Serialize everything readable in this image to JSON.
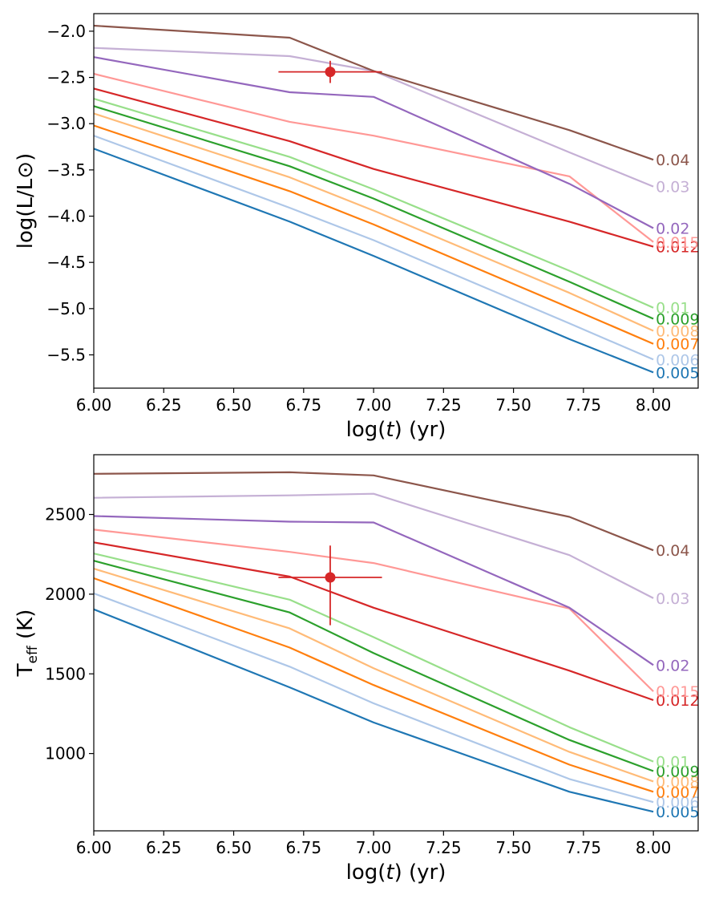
{
  "chart_data": [
    {
      "type": "line",
      "panel": "top",
      "xlabel": "log(t) (yr)",
      "ylabel": "log(L/L⊙)",
      "xlim": [
        6.0,
        8.16
      ],
      "ylim": [
        -5.86,
        -1.81
      ],
      "xticks": [
        6.0,
        6.25,
        6.5,
        6.75,
        7.0,
        7.25,
        7.5,
        7.75,
        8.0
      ],
      "xtick_labels": [
        "6.00",
        "6.25",
        "6.50",
        "6.75",
        "7.00",
        "7.25",
        "7.50",
        "7.75",
        "8.00"
      ],
      "yticks": [
        -2.0,
        -2.5,
        -3.0,
        -3.5,
        -4.0,
        -4.5,
        -5.0,
        -5.5
      ],
      "ytick_labels": [
        "−2.0",
        "−2.5",
        "−3.0",
        "−3.5",
        "−4.0",
        "−4.5",
        "−5.0",
        "−5.5"
      ],
      "x": [
        6.0,
        6.7,
        7.0,
        7.7,
        8.0
      ],
      "series": [
        {
          "name": "0.005",
          "color": "#1f77b4",
          "values": [
            -3.27,
            -4.06,
            -4.43,
            -5.33,
            -5.69
          ]
        },
        {
          "name": "0.006",
          "color": "#aec7e8",
          "values": [
            -3.13,
            -3.91,
            -4.26,
            -5.16,
            -5.55
          ]
        },
        {
          "name": "0.007",
          "color": "#ff7f0e",
          "values": [
            -3.02,
            -3.73,
            -4.09,
            -4.99,
            -5.38
          ]
        },
        {
          "name": "0.008",
          "color": "#ffbb78",
          "values": [
            -2.89,
            -3.58,
            -3.94,
            -4.83,
            -5.24
          ]
        },
        {
          "name": "0.009",
          "color": "#2ca02c",
          "values": [
            -2.81,
            -3.46,
            -3.81,
            -4.71,
            -5.11
          ]
        },
        {
          "name": "0.01",
          "color": "#98df8a",
          "values": [
            -2.73,
            -3.36,
            -3.71,
            -4.59,
            -4.99
          ]
        },
        {
          "name": "0.012",
          "color": "#d62728",
          "values": [
            -2.62,
            -3.19,
            -3.49,
            -4.06,
            -4.33
          ]
        },
        {
          "name": "0.015",
          "color": "#ff9896",
          "values": [
            -2.46,
            -2.98,
            -3.13,
            -3.57,
            -4.28
          ]
        },
        {
          "name": "0.02",
          "color": "#9467bd",
          "values": [
            -2.28,
            -2.66,
            -2.71,
            -3.65,
            -4.13
          ]
        },
        {
          "name": "0.03",
          "color": "#c5b0d5",
          "values": [
            -2.18,
            -2.27,
            -2.43,
            -3.31,
            -3.68
          ]
        },
        {
          "name": "0.04",
          "color": "#8c564b",
          "values": [
            -1.94,
            -2.07,
            -2.43,
            -3.07,
            -3.39
          ]
        }
      ],
      "point": {
        "x": 6.845,
        "y": -2.44,
        "xerr": [
          0.185,
          0.185
        ],
        "yerr": [
          0.12,
          0.12
        ],
        "color": "#d62728"
      }
    },
    {
      "type": "line",
      "panel": "bottom",
      "xlabel": "log(t) (yr)",
      "ylabel": "T_eff (K)",
      "xlim": [
        6.0,
        8.16
      ],
      "ylim": [
        515,
        2875
      ],
      "xticks": [
        6.0,
        6.25,
        6.5,
        6.75,
        7.0,
        7.25,
        7.5,
        7.75,
        8.0
      ],
      "xtick_labels": [
        "6.00",
        "6.25",
        "6.50",
        "6.75",
        "7.00",
        "7.25",
        "7.50",
        "7.75",
        "8.00"
      ],
      "yticks": [
        1000,
        1500,
        2000,
        2500
      ],
      "ytick_labels": [
        "1000",
        "1500",
        "2000",
        "2500"
      ],
      "x": [
        6.0,
        6.7,
        7.0,
        7.7,
        8.0
      ],
      "series": [
        {
          "name": "0.005",
          "color": "#1f77b4",
          "values": [
            1905,
            1415,
            1195,
            760,
            635
          ]
        },
        {
          "name": "0.006",
          "color": "#aec7e8",
          "values": [
            2005,
            1545,
            1315,
            840,
            695
          ]
        },
        {
          "name": "0.007",
          "color": "#ff7f0e",
          "values": [
            2100,
            1665,
            1430,
            930,
            760
          ]
        },
        {
          "name": "0.008",
          "color": "#ffbb78",
          "values": [
            2160,
            1785,
            1535,
            1010,
            825
          ]
        },
        {
          "name": "0.009",
          "color": "#2ca02c",
          "values": [
            2210,
            1885,
            1630,
            1085,
            890
          ]
        },
        {
          "name": "0.01",
          "color": "#98df8a",
          "values": [
            2255,
            1965,
            1730,
            1165,
            950
          ]
        },
        {
          "name": "0.012",
          "color": "#d62728",
          "values": [
            2325,
            2110,
            1915,
            1520,
            1335
          ]
        },
        {
          "name": "0.015",
          "color": "#ff9896",
          "values": [
            2405,
            2265,
            2195,
            1910,
            1390
          ]
        },
        {
          "name": "0.02",
          "color": "#9467bd",
          "values": [
            2490,
            2455,
            2450,
            1915,
            1555
          ]
        },
        {
          "name": "0.03",
          "color": "#c5b0d5",
          "values": [
            2605,
            2620,
            2630,
            2245,
            1975
          ]
        },
        {
          "name": "0.04",
          "color": "#8c564b",
          "values": [
            2755,
            2765,
            2745,
            2485,
            2275
          ]
        }
      ],
      "point": {
        "x": 6.845,
        "y": 2105,
        "xerr": [
          0.185,
          0.185
        ],
        "yerr": [
          300,
          200
        ],
        "color": "#d62728"
      }
    }
  ]
}
